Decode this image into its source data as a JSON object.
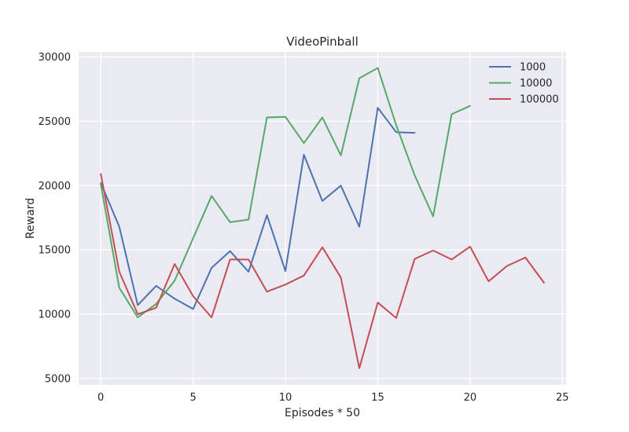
{
  "chart_data": {
    "type": "line",
    "title": "VideoPinball",
    "xlabel": "Episodes * 50",
    "ylabel": "Reward",
    "xlim": [
      -1.2,
      25.2
    ],
    "ylim": [
      4500,
      30400
    ],
    "xticks": [
      0,
      5,
      10,
      15,
      20,
      25
    ],
    "yticks": [
      5000,
      10000,
      15000,
      20000,
      25000,
      30000
    ],
    "grid": true,
    "legend_position": "top-right",
    "background_color": "#EAEAF2",
    "series": [
      {
        "name": "1000",
        "color": "#4C72B0",
        "x": [
          0,
          1,
          2,
          3,
          4,
          5,
          6,
          7,
          8,
          9,
          10,
          11,
          12,
          13,
          14,
          15,
          16,
          17
        ],
        "values": [
          20200,
          16800,
          10700,
          12200,
          11200,
          10400,
          13600,
          14900,
          13300,
          17700,
          13350,
          22400,
          18800,
          20000,
          16800,
          26050,
          24150,
          24100
        ]
      },
      {
        "name": "10000",
        "color": "#55A868",
        "x": [
          0,
          1,
          2,
          3,
          4,
          5,
          6,
          7,
          8,
          9,
          10,
          11,
          12,
          13,
          14,
          15,
          16,
          17,
          18,
          19,
          20
        ],
        "values": [
          20100,
          12050,
          9750,
          10800,
          12600,
          15900,
          19200,
          17150,
          17350,
          25300,
          25350,
          23300,
          25300,
          22350,
          28350,
          29150,
          24700,
          20800,
          17600,
          25550,
          26200
        ]
      },
      {
        "name": "100000",
        "color": "#C44E52",
        "x": [
          0,
          1,
          2,
          3,
          4,
          5,
          6,
          7,
          8,
          9,
          10,
          11,
          12,
          13,
          14,
          15,
          16,
          17,
          18,
          19,
          20,
          21,
          22,
          23,
          24
        ],
        "values": [
          20900,
          13300,
          10000,
          10500,
          13900,
          11400,
          9750,
          14250,
          14250,
          11750,
          12300,
          13000,
          15200,
          12850,
          5800,
          10900,
          9700,
          14300,
          14950,
          14250,
          15250,
          12550,
          13750,
          14400,
          12450
        ]
      }
    ]
  }
}
